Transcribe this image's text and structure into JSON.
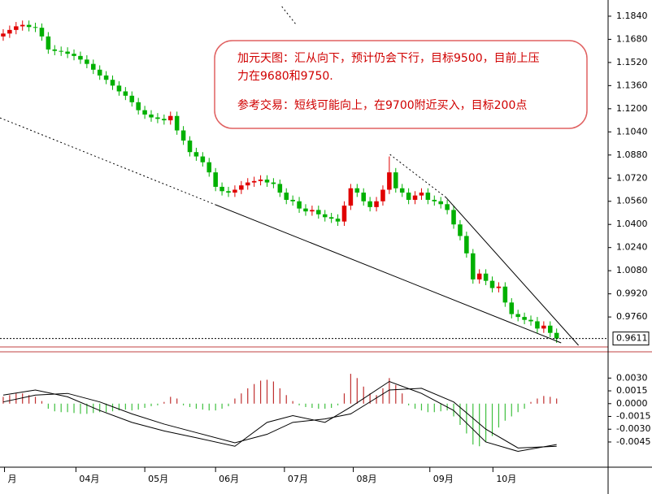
{
  "chart_data": [
    {
      "type": "candlestick",
      "ylim": [
        0.9564,
        1.1952
      ],
      "yticks": [
        {
          "value": 1.184,
          "label": "1.1840"
        },
        {
          "value": 1.168,
          "label": "1.1680"
        },
        {
          "value": 1.152,
          "label": "1.1520"
        },
        {
          "value": 1.136,
          "label": "1.1360"
        },
        {
          "value": 1.12,
          "label": "1.1200"
        },
        {
          "value": 1.104,
          "label": "1.1040"
        },
        {
          "value": 1.088,
          "label": "1.0880"
        },
        {
          "value": 1.072,
          "label": "1.0720"
        },
        {
          "value": 1.056,
          "label": "1.0560"
        },
        {
          "value": 1.04,
          "label": "1.0400"
        },
        {
          "value": 1.024,
          "label": "1.0240"
        },
        {
          "value": 1.008,
          "label": "1.0080"
        },
        {
          "value": 0.992,
          "label": "0.9920"
        },
        {
          "value": 0.976,
          "label": "0.9760"
        }
      ],
      "xlim": [
        -0.5,
        94
      ],
      "xticks": [
        {
          "value": 0.2,
          "label": "月"
        },
        {
          "value": 11.3,
          "label": "04月"
        },
        {
          "value": 22,
          "label": "05月"
        },
        {
          "value": 33,
          "label": "06月"
        },
        {
          "value": 43.7,
          "label": "07月"
        },
        {
          "value": 54.4,
          "label": "08月"
        },
        {
          "value": 66.3,
          "label": "09月"
        },
        {
          "value": 76.1,
          "label": "10月"
        }
      ],
      "last_price": 0.9611,
      "up_color": "#e00000",
      "down_color": "#00b000",
      "open": [
        1.17,
        1.172,
        1.1745,
        1.177,
        1.178,
        1.1765,
        1.176,
        1.17,
        1.161,
        1.16,
        1.1595,
        1.158,
        1.1565,
        1.154,
        1.151,
        1.147,
        1.143,
        1.14,
        1.136,
        1.132,
        1.129,
        1.1245,
        1.119,
        1.116,
        1.114,
        1.113,
        1.112,
        1.115,
        1.105,
        1.098,
        1.09,
        1.087,
        1.083,
        1.076,
        1.066,
        1.063,
        1.062,
        1.064,
        1.067,
        1.069,
        1.07,
        1.071,
        1.069,
        1.068,
        1.062,
        1.057,
        1.056,
        1.051,
        1.049,
        1.05,
        1.047,
        1.045,
        1.044,
        1.042,
        1.053,
        1.065,
        1.062,
        1.056,
        1.052,
        1.056,
        1.064,
        1.076,
        1.065,
        1.062,
        1.057,
        1.06,
        1.062,
        1.057,
        1.056,
        1.054,
        1.05,
        1.04,
        1.032,
        1.02,
        1.002,
        1.006,
        1.001,
        0.996,
        0.997,
        0.986,
        0.978,
        0.976,
        0.974,
        0.973,
        0.968,
        0.97,
        0.965
      ],
      "high": [
        1.175,
        1.1775,
        1.18,
        1.181,
        1.181,
        1.1795,
        1.179,
        1.173,
        1.164,
        1.163,
        1.1625,
        1.161,
        1.1595,
        1.157,
        1.154,
        1.15,
        1.146,
        1.143,
        1.139,
        1.135,
        1.132,
        1.1275,
        1.122,
        1.119,
        1.117,
        1.116,
        1.118,
        1.118,
        1.108,
        1.101,
        1.093,
        1.09,
        1.086,
        1.079,
        1.069,
        1.066,
        1.067,
        1.07,
        1.072,
        1.073,
        1.074,
        1.074,
        1.072,
        1.071,
        1.065,
        1.06,
        1.059,
        1.054,
        1.053,
        1.053,
        1.05,
        1.048,
        1.047,
        1.056,
        1.068,
        1.068,
        1.065,
        1.059,
        1.059,
        1.067,
        1.087,
        1.079,
        1.068,
        1.065,
        1.063,
        1.065,
        1.065,
        1.06,
        1.059,
        1.057,
        1.053,
        1.043,
        1.035,
        1.023,
        1.009,
        1.009,
        1.004,
        1.0,
        1.0,
        0.989,
        0.981,
        0.979,
        0.977,
        0.976,
        0.973,
        0.973,
        0.968
      ],
      "low": [
        1.167,
        1.169,
        1.1715,
        1.174,
        1.1735,
        1.173,
        1.167,
        1.158,
        1.157,
        1.1565,
        1.155,
        1.1535,
        1.151,
        1.148,
        1.144,
        1.14,
        1.137,
        1.133,
        1.129,
        1.126,
        1.1215,
        1.116,
        1.113,
        1.111,
        1.11,
        1.109,
        1.109,
        1.102,
        1.095,
        1.087,
        1.084,
        1.08,
        1.073,
        1.063,
        1.06,
        1.059,
        1.059,
        1.061,
        1.064,
        1.066,
        1.067,
        1.066,
        1.065,
        1.059,
        1.054,
        1.053,
        1.048,
        1.046,
        1.046,
        1.044,
        1.042,
        1.041,
        1.039,
        1.039,
        1.05,
        1.059,
        1.053,
        1.049,
        1.049,
        1.053,
        1.061,
        1.062,
        1.059,
        1.054,
        1.054,
        1.057,
        1.054,
        1.053,
        1.051,
        1.047,
        1.037,
        1.029,
        1.017,
        0.999,
        0.999,
        0.998,
        0.993,
        0.993,
        0.983,
        0.975,
        0.973,
        0.971,
        0.97,
        0.965,
        0.965,
        0.962,
        0.9581
      ],
      "close": [
        1.172,
        1.1745,
        1.177,
        1.178,
        1.1765,
        1.176,
        1.17,
        1.161,
        1.16,
        1.1595,
        1.158,
        1.1565,
        1.154,
        1.151,
        1.147,
        1.143,
        1.14,
        1.136,
        1.132,
        1.129,
        1.1245,
        1.119,
        1.116,
        1.114,
        1.113,
        1.112,
        1.115,
        1.105,
        1.098,
        1.09,
        1.087,
        1.083,
        1.076,
        1.066,
        1.063,
        1.062,
        1.064,
        1.067,
        1.069,
        1.07,
        1.071,
        1.069,
        1.068,
        1.062,
        1.057,
        1.056,
        1.051,
        1.049,
        1.05,
        1.047,
        1.045,
        1.044,
        1.042,
        1.053,
        1.065,
        1.062,
        1.056,
        1.052,
        1.056,
        1.064,
        1.076,
        1.065,
        1.062,
        1.057,
        1.06,
        1.062,
        1.057,
        1.056,
        1.054,
        1.05,
        1.04,
        1.032,
        1.02,
        1.002,
        1.006,
        1.001,
        0.996,
        0.997,
        0.986,
        0.978,
        0.976,
        0.974,
        0.973,
        0.968,
        0.97,
        0.965,
        0.9611
      ],
      "trendlines": [
        {
          "style": "dotted",
          "x": [
            -0.5,
            33
          ],
          "y": [
            1.1137,
            1.0536
          ]
        },
        {
          "style": "solid",
          "x": [
            33,
            86.7
          ],
          "y": [
            1.0536,
            0.9581
          ]
        },
        {
          "style": "dotted",
          "x": [
            43.3,
            45.5
          ],
          "y": [
            1.1907,
            1.1783
          ]
        },
        {
          "style": "dotted",
          "x": [
            60.1,
            68.8
          ],
          "y": [
            1.0884,
            1.0587
          ]
        },
        {
          "style": "solid",
          "x": [
            68.8,
            89.4
          ],
          "y": [
            1.0587,
            0.9564
          ]
        }
      ],
      "annotation": {
        "lines": [
          "加元天图：汇从向下，预计仍会下行，目标9500，目前上压",
          "力在9680和9750.",
          "参考交易：短线可能向上，在9700附近买入，目标200点"
        ]
      }
    },
    {
      "type": "macd",
      "ylim": [
        -0.0066,
        0.0057
      ],
      "yticks": [
        {
          "value": 0.003,
          "label": "0.0030"
        },
        {
          "value": 0.0015,
          "label": "0.0015"
        },
        {
          "value": 0,
          "label": "0.0000"
        },
        {
          "value": -0.0015,
          "label": "-0.0015"
        },
        {
          "value": -0.003,
          "label": "-0.0030"
        },
        {
          "value": -0.0045,
          "label": "-0.0045"
        }
      ],
      "pos_color": "#c03030",
      "neg_color": "#40c040",
      "histogram": [
        0.0008,
        0.001,
        0.0012,
        0.0012,
        0.001,
        0.0008,
        0.0003,
        -0.0006,
        -0.0009,
        -0.001,
        -0.001,
        -0.0011,
        -0.0012,
        -0.0012,
        -0.0011,
        -0.001,
        -0.001,
        -0.0009,
        -0.0008,
        -0.0007,
        -0.0008,
        -0.0007,
        -0.0005,
        -0.0003,
        -0.0002,
        0.0002,
        0.0008,
        0.0006,
        -0.0002,
        -0.0004,
        -0.0006,
        -0.0007,
        -0.0008,
        -0.0008,
        -0.0006,
        -0.0003,
        0.0006,
        0.0012,
        0.0018,
        0.0023,
        0.0027,
        0.0028,
        0.0026,
        0.0018,
        0.001,
        0.0003,
        -0.0002,
        -0.0004,
        -0.0005,
        -0.0006,
        -0.0006,
        -0.0005,
        -0.0002,
        0.0012,
        0.0035,
        0.003,
        0.002,
        0.0012,
        0.001,
        0.0018,
        0.003,
        0.0022,
        0.0012,
        -0.0002,
        -0.0006,
        -0.0008,
        -0.001,
        -0.001,
        -0.0009,
        -0.0008,
        -0.0015,
        -0.0025,
        -0.0035,
        -0.0048,
        -0.005,
        -0.0045,
        -0.0038,
        -0.0028,
        -0.002,
        -0.0015,
        -0.001,
        -0.0006,
        0.0002,
        0.0006,
        0.0009,
        0.0008,
        0.0006
      ],
      "lines": [
        {
          "color": "#000000",
          "x": [
            0,
            5,
            10,
            15,
            20,
            25,
            30,
            36,
            41,
            45,
            50,
            54,
            60,
            65,
            70,
            75,
            80,
            86
          ],
          "values": [
            0.001,
            0.0016,
            0.0008,
            -0.0008,
            -0.0022,
            -0.0032,
            -0.004,
            -0.005,
            -0.0022,
            -0.0014,
            -0.0022,
            -0.0004,
            0.0026,
            0.0012,
            -0.0008,
            -0.0045,
            -0.0056,
            -0.0048
          ]
        },
        {
          "color": "#000000",
          "x": [
            0,
            5,
            10,
            15,
            20,
            25,
            30,
            36,
            41,
            45,
            50,
            54,
            60,
            65,
            70,
            75,
            80,
            86
          ],
          "values": [
            0.0002,
            0.001,
            0.0012,
            0.0002,
            -0.0012,
            -0.0024,
            -0.0034,
            -0.0046,
            -0.0036,
            -0.0022,
            -0.0018,
            -0.0012,
            0.0016,
            0.0018,
            0.0002,
            -0.003,
            -0.0052,
            -0.005
          ]
        }
      ]
    }
  ]
}
